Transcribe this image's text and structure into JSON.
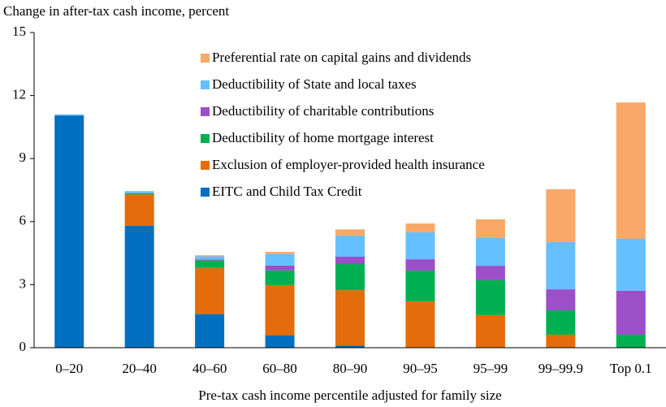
{
  "chart_data": {
    "type": "stacked_bar",
    "ylabel": "Change in after-tax cash income, percent",
    "xlabel": "Pre-tax cash income percentile adjusted for family size",
    "categories": [
      "0–20",
      "20–40",
      "40–60",
      "60–80",
      "80–90",
      "90–95",
      "95–99",
      "99–99.9",
      "Top 0.1"
    ],
    "series": [
      {
        "name": "EITC and Child Tax Credit",
        "color": "#0070c0",
        "values": [
          11.05,
          5.8,
          1.6,
          0.58,
          0.1,
          0,
          0,
          0,
          0
        ]
      },
      {
        "name": "Exclusion of employer-provided health insurance",
        "color": "#e46c0a",
        "values": [
          0,
          1.5,
          2.2,
          2.4,
          2.64,
          2.2,
          1.55,
          0.62,
          0
        ]
      },
      {
        "name": "Deductibility of home mortgage interest",
        "color": "#00b050",
        "values": [
          0,
          0.05,
          0.35,
          0.7,
          1.24,
          1.47,
          1.66,
          1.16,
          0.62
        ]
      },
      {
        "name": "Deductibility of charitable contributions",
        "color": "#9b4fc9",
        "values": [
          0,
          0,
          0.05,
          0.23,
          0.35,
          0.54,
          0.69,
          1.0,
          2.09
        ]
      },
      {
        "name": "Deductibility of State and local taxes",
        "color": "#66bfff",
        "values": [
          0.05,
          0.1,
          0.15,
          0.55,
          1.0,
          1.28,
          1.32,
          2.25,
          2.47
        ]
      },
      {
        "name": "Preferential rate on capital gains and dividends",
        "color": "#f9a868",
        "values": [
          0,
          0,
          0.05,
          0.1,
          0.3,
          0.42,
          0.89,
          2.51,
          6.49
        ]
      }
    ],
    "ylim": [
      0,
      15
    ],
    "yticks": [
      0,
      3,
      6,
      9,
      12,
      15
    ]
  }
}
